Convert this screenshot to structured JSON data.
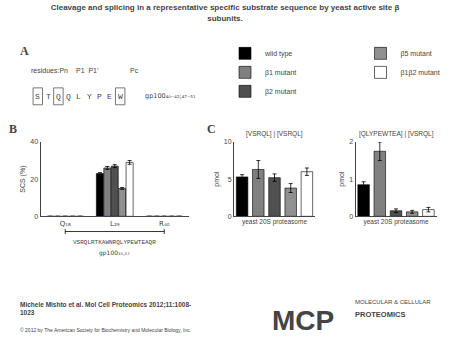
{
  "title": "Cleavage and splicing in a representative specific substrate sequence by yeast active site β\nsubunits.",
  "annotations": [
    "A",
    "residues:Pn",
    "P1  P1’",
    "Pc",
    "STQQLYPEW",
    "gp100₄₀₋₄₂;₄₇₋₅₁",
    "B",
    "VSRQLRTKAWNRQLYPEWTEAQR",
    "gp100₃₅,₅₇",
    "C",
    "Michele Mishto et al. Mol Cell Proteomics 2012;11:1008-\n1023",
    "© 2012 by The American Society for Biochemistry and Molecular Biology, Inc.",
    "MCP",
    "MOLECULAR & CELLULAR",
    "PROTEOMICS"
  ],
  "chart_data": [
    {
      "type": "bar",
      "categories": [
        "Q₁₈",
        "L₂₉",
        "R₄₀"
      ],
      "ylabel": "SCS (%)",
      "ylim": [
        0,
        40
      ],
      "yticks": [
        0,
        20,
        40
      ],
      "grid": false,
      "legend": "upper right",
      "series": [
        {
          "name": "wild type",
          "color": "#000000",
          "values": [
            0,
            23,
            0
          ],
          "errors": [
            0,
            0.5,
            0
          ]
        },
        {
          "name": "β1 mutant",
          "color": "#808080",
          "values": [
            0,
            26,
            0
          ],
          "errors": [
            0,
            0.8,
            0
          ]
        },
        {
          "name": "β2 mutant",
          "color": "#505050",
          "values": [
            0,
            27,
            0
          ],
          "errors": [
            0,
            0.8,
            0
          ]
        },
        {
          "name": "β5 mutant",
          "color": "#909090",
          "values": [
            0,
            15,
            0
          ],
          "errors": [
            0,
            0.5,
            0
          ]
        },
        {
          "name": "β1β2 mutant",
          "color": "#ffffff",
          "values": [
            0,
            29,
            0
          ],
          "errors": [
            0,
            1.0,
            0
          ]
        }
      ]
    },
    {
      "type": "bar",
      "title": "[VSRQL] | [VSRQL]",
      "xlabel": "yeast 20S proteasome",
      "ylabel": "pmol",
      "categories": [
        null,
        null,
        null,
        null,
        null
      ],
      "values": [
        5.3,
        6.3,
        5.2,
        3.8,
        6.0
      ],
      "errors": [
        0.3,
        1.2,
        0.5,
        0.6,
        0.5
      ],
      "colors": [
        "#000000",
        "#808080",
        "#505050",
        "#909090",
        "#ffffff"
      ],
      "ylim": [
        0,
        10
      ],
      "yticks": [
        0,
        5,
        10
      ],
      "grid": false,
      "tick_labels": "y"
    },
    {
      "type": "bar",
      "title": "[QLYPEWTEA] | [VSRQL]",
      "xlabel": "yeast 20S proteasome",
      "ylabel": "pmol",
      "categories": [
        null,
        null,
        null,
        null,
        null
      ],
      "values": [
        0.85,
        1.75,
        0.15,
        0.12,
        0.18
      ],
      "errors": [
        0.08,
        0.25,
        0.05,
        0.04,
        0.06
      ],
      "colors": [
        "#000000",
        "#808080",
        "#505050",
        "#909090",
        "#ffffff"
      ],
      "ylim": [
        0,
        2
      ],
      "yticks": [
        0,
        1,
        2
      ],
      "grid": false,
      "tick_labels": "y"
    }
  ]
}
